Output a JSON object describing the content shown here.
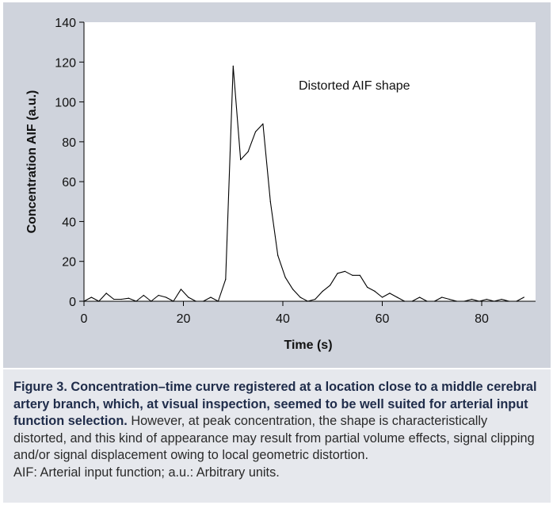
{
  "chart_data": {
    "type": "line",
    "xlabel": "Time (s)",
    "ylabel": "Concentration AIF (a.u.)",
    "xlim": [
      0,
      90
    ],
    "ylim": [
      0,
      140
    ],
    "xticks": [
      0,
      20,
      40,
      60,
      80
    ],
    "yticks": [
      0,
      20,
      40,
      60,
      80,
      100,
      120,
      140
    ],
    "grid": false,
    "annotation": "Distorted AIF shape",
    "series": [
      {
        "color": "#000000",
        "x": [
          0,
          1.5,
          3,
          4.5,
          6,
          7.5,
          9,
          10.5,
          12,
          13.5,
          15,
          16.5,
          18,
          19.5,
          21,
          22.5,
          24,
          25.5,
          27,
          28.5,
          30,
          31.5,
          33,
          34.5,
          36,
          37.5,
          39,
          40.5,
          42,
          43.5,
          45,
          46.5,
          48,
          49.5,
          51,
          52.5,
          54,
          55.5,
          57,
          58.5,
          60,
          61.5,
          63,
          64.5,
          66,
          67.5,
          69,
          70.5,
          72,
          73.5,
          75,
          76.5,
          78,
          79.5,
          81,
          82.5,
          84,
          85.5,
          87,
          88.5
        ],
        "y": [
          0,
          2,
          0,
          4,
          1,
          1,
          1.5,
          0,
          3,
          0,
          3,
          2,
          0,
          6,
          2,
          0,
          0,
          2,
          0,
          11,
          118,
          71,
          75,
          85,
          89,
          50,
          23,
          12,
          6,
          2,
          0,
          1,
          5,
          8,
          14,
          15,
          13,
          13,
          7,
          5,
          2,
          4,
          2,
          0,
          0,
          2,
          0,
          0,
          2,
          1,
          0,
          0,
          1,
          0,
          1,
          0,
          1,
          0,
          0,
          2
        ]
      }
    ]
  },
  "caption": {
    "bold": "Figure 3. Concentration–time curve registered at a location close to a middle cerebral artery branch, which, at visual inspection, seemed to be well suited for arterial input function selection.",
    "text": " However, at peak concentration, the shape is characteristically distorted, and this kind of appearance may result from partial volume effects, signal clipping and/or signal displacement owing to local geometric distortion.",
    "abbreviations": "AIF: Arterial input function; a.u.: Arbitrary units."
  }
}
